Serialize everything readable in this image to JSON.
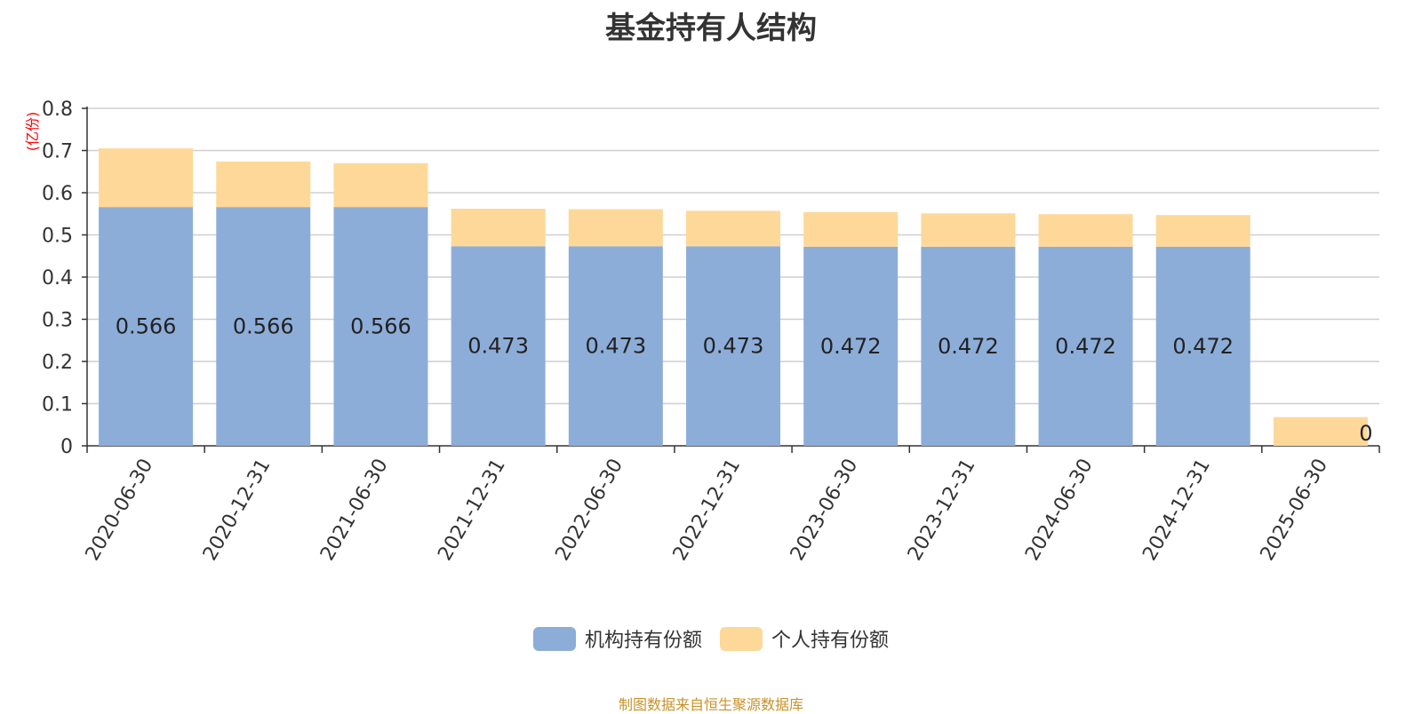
{
  "title": "基金持有人结构",
  "source_note": "制图数据来自恒生聚源数据库",
  "colors": {
    "institutional": "#8dadd9",
    "individual": "#fdd898",
    "unit_label": "#ff0000",
    "source_note": "#c8922a"
  },
  "chart_data": {
    "type": "bar",
    "stacked": true,
    "title": "基金持有人结构",
    "ylabel": "(亿份)",
    "ylim": [
      0,
      0.8
    ],
    "yticks": [
      "0",
      "0.1",
      "0.2",
      "0.3",
      "0.4",
      "0.5",
      "0.6",
      "0.7",
      "0.8"
    ],
    "grid": true,
    "legend_position": "bottom-center",
    "categories": [
      "2020-06-30",
      "2020-12-31",
      "2021-06-30",
      "2021-12-31",
      "2022-06-30",
      "2022-12-31",
      "2023-06-30",
      "2023-12-31",
      "2024-06-30",
      "2024-12-31",
      "2025-06-30"
    ],
    "series": [
      {
        "name": "机构持有份额",
        "values": [
          0.566,
          0.566,
          0.566,
          0.473,
          0.473,
          0.473,
          0.472,
          0.472,
          0.472,
          0.472,
          0
        ],
        "labels": [
          "0.566",
          "0.566",
          "0.566",
          "0.473",
          "0.473",
          "0.473",
          "0.472",
          "0.472",
          "0.472",
          "0.472",
          "0"
        ]
      },
      {
        "name": "个人持有份额",
        "values": [
          0.139,
          0.108,
          0.104,
          0.089,
          0.088,
          0.084,
          0.082,
          0.079,
          0.077,
          0.075,
          0.068
        ]
      }
    ]
  },
  "legend": [
    {
      "name": "机构持有份额",
      "color": "#8dadd9"
    },
    {
      "name": "个人持有份额",
      "color": "#fdd898"
    }
  ]
}
